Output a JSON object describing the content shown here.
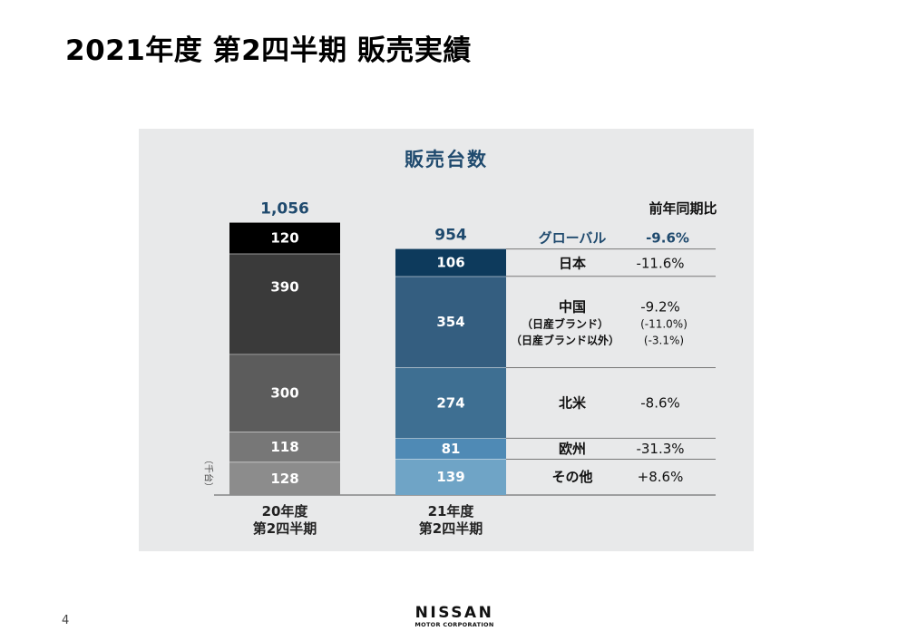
{
  "slide": {
    "title": "2021年度 第2四半期 販売実績",
    "page_number": "4"
  },
  "logo": {
    "word": "NISSAN",
    "sub": "MOTOR CORPORATION"
  },
  "chart_data": {
    "type": "bar",
    "stacked": true,
    "title": "販売台数",
    "unit_label": "（千台）",
    "categories": [
      "20年度\n第2四半期",
      "21年度\n第2四半期"
    ],
    "totals": [
      "1,056",
      "954"
    ],
    "series": [
      {
        "name": "その他",
        "values": [
          128,
          139
        ]
      },
      {
        "name": "欧州",
        "values": [
          118,
          81
        ]
      },
      {
        "name": "北米",
        "values": [
          300,
          274
        ]
      },
      {
        "name": "中国",
        "values": [
          390,
          354
        ]
      },
      {
        "name": "日本",
        "values": [
          120,
          106
        ]
      }
    ],
    "colors": {
      "prev": [
        "#8c8c8c",
        "#777777",
        "#5c5c5c",
        "#3a3a3a",
        "#000000"
      ],
      "curr": [
        "#6fa4c6",
        "#4f8ab5",
        "#3e6f92",
        "#345e80",
        "#0d3a5c"
      ]
    },
    "yoy": {
      "header": "前年同期比",
      "global_label": "グローバル",
      "global_value": "-9.6%",
      "rows": [
        {
          "region": "日本",
          "value": "-11.6%"
        },
        {
          "region": "中国",
          "value": "-9.2%",
          "sub": [
            {
              "label": "（日産ブランド）",
              "value": "(-11.0%)"
            },
            {
              "label": "（日産ブランド以外）",
              "value": "(-3.1%)"
            }
          ]
        },
        {
          "region": "北米",
          "value": "-8.6%"
        },
        {
          "region": "欧州",
          "value": "-31.3%"
        },
        {
          "region": "その他",
          "value": "+8.6%"
        }
      ]
    }
  }
}
